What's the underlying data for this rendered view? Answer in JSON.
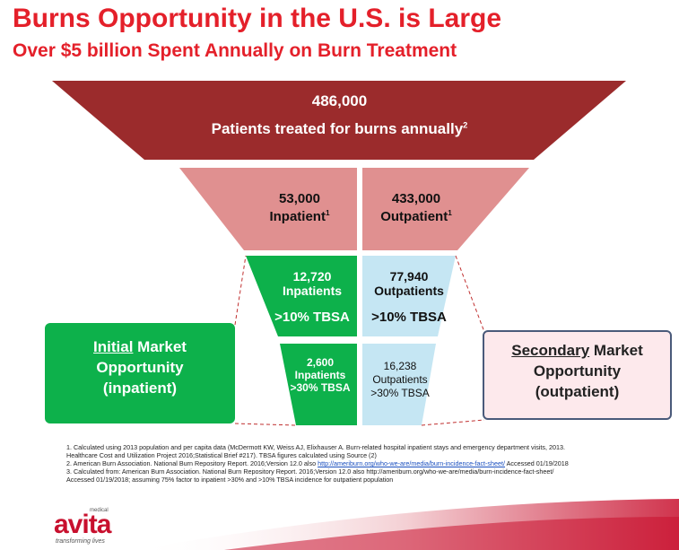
{
  "header": {
    "title": "Burns Opportunity in the U.S. is Large",
    "subtitle": "Over $5 billion Spent Annually on Burn Treatment"
  },
  "funnel": {
    "top": {
      "value": "486,000",
      "label": "Patients treated for burns annually",
      "sup": "2"
    },
    "inpatient": {
      "value": "53,000",
      "label": "Inpatient",
      "sup": "1"
    },
    "outpatient": {
      "value": "433,000",
      "label": "Outpatient",
      "sup": "1"
    },
    "inpatient_10": {
      "value": "12,720",
      "label": "Inpatients",
      "tbsa": ">10% TBSA"
    },
    "outpatient_10": {
      "value": "77,940",
      "label": "Outpatients",
      "tbsa": ">10% TBSA"
    },
    "inpatient_30": {
      "value": "2,600",
      "label": "Inpatients",
      "tbsa": ">30% TBSA"
    },
    "outpatient_30": {
      "value": "16,238",
      "label": "Outpatients",
      "tbsa": ">30% TBSA"
    }
  },
  "callouts": {
    "initial": {
      "highlight": "Initial",
      "rest": " Market",
      "line2": "Opportunity",
      "line3": "(inpatient)"
    },
    "secondary": {
      "highlight": "Secondary",
      "rest": " Market",
      "line2": "Opportunity",
      "line3": "(outpatient)"
    }
  },
  "footnotes": {
    "n1a": "1. Calculated using 2013 population and per capita data (McDermott KW, Weiss AJ, Elixhauser A. Burn-related hospital inpatient stays and emergency department visits, 2013.",
    "n1b": "Healthcare Cost and Utilization Project 2016;Statistical Brief #217). TBSA figures calculated using Source (2)",
    "n2_text": "2. American Burn Association. National Burn Repository Report. 2016;Version 12.0 also ",
    "n2_link": "http://ameriburn.org/who-we-are/media/burn-incidence-fact-sheet/",
    "n2_tail": " Accessed 01/19/2018",
    "n3a": "3. Calculated from: American Burn Association. National Burn Repository Report. 2016;Version 12.0 also http://ameriburn.org/who-we-are/media/burn-incidence-fact-sheet/",
    "n3b": "Accessed 01/19/2018; assuming 75% factor to inpatient >30% and >10% TBSA incidence for outpatient population"
  },
  "logo": {
    "name": "avita",
    "medical": "medical",
    "tagline": "transforming lives"
  },
  "colors": {
    "title": "#e4202a",
    "funnel_top": "#9b2b2c",
    "funnel_mid": "#e09090",
    "inpatient_green": "#0db14b",
    "outpatient_blue": "#c5e6f3",
    "logo_red": "#c8102e"
  }
}
